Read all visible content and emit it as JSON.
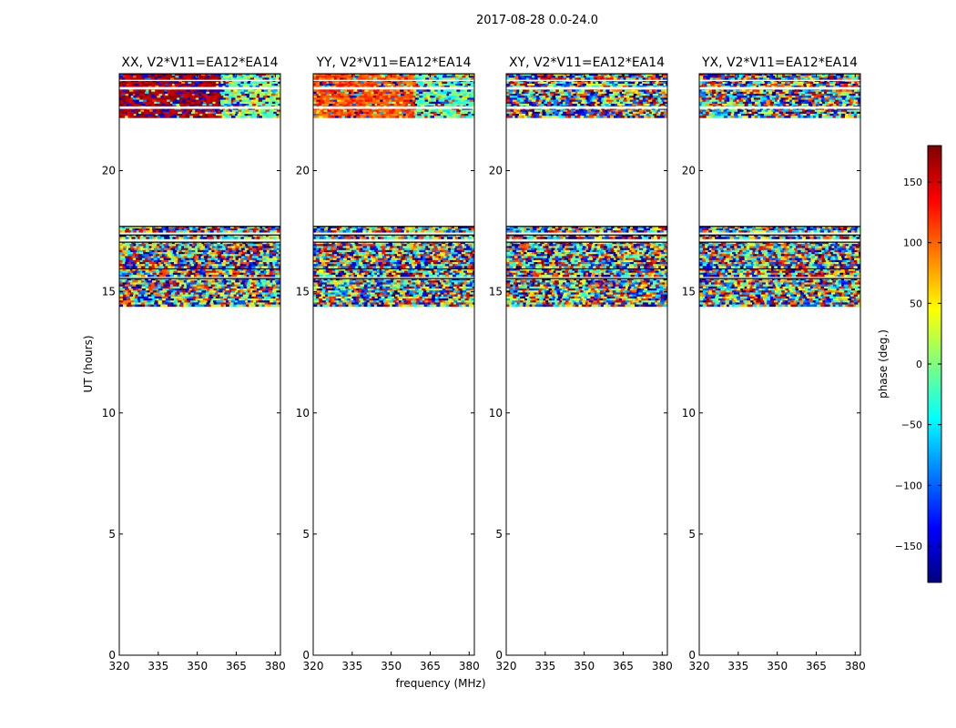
{
  "figure": {
    "suptitle": "2017-08-28 0.0-24.0"
  },
  "chart_data": {
    "type": "heatmap",
    "panels": [
      {
        "title": "XX, V2*V11=EA12*EA14",
        "base": "dark-red",
        "column_change": "light-blue"
      },
      {
        "title": "YY, V2*V11=EA12*EA14",
        "base": "red-orange",
        "column_change": "light-cyan"
      },
      {
        "title": "XY, V2*V11=EA12*EA14",
        "base": "noise",
        "column_change": "noise"
      },
      {
        "title": "YX, V2*V11=EA12*EA14",
        "base": "noise",
        "column_change": "noise"
      }
    ],
    "xlabel": "frequency (MHz)",
    "ylabel": "UT (hours)",
    "xlim": [
      320,
      382
    ],
    "ylim": [
      0,
      24
    ],
    "x_ticks": [
      320,
      335,
      350,
      365,
      380
    ],
    "y_ticks": [
      0,
      5,
      10,
      15,
      20
    ],
    "x_ticklabels": [
      "320",
      "335",
      "350",
      "365",
      "380"
    ],
    "y_ticklabels": [
      "0",
      "5",
      "10",
      "15",
      "20"
    ],
    "data_segments_ut": [
      [
        14.45,
        15.55
      ],
      [
        15.65,
        15.95
      ],
      [
        16.05,
        17.05
      ],
      [
        17.25,
        17.35
      ],
      [
        17.5,
        17.7
      ],
      [
        22.2,
        24.0
      ]
    ],
    "colorbar": {
      "label": "phase (deg.)",
      "range": [
        -180,
        180
      ],
      "ticks": [
        150,
        100,
        50,
        0,
        -50,
        -100,
        -150
      ],
      "ticklabels": [
        "150",
        "100",
        "50",
        "0",
        "−50",
        "−100",
        "−150"
      ],
      "colormap": [
        "#00007f",
        "#0000ff",
        "#007fff",
        "#00ffff",
        "#7fff7f",
        "#ffff00",
        "#ff7f00",
        "#ff0000",
        "#7f0000"
      ]
    }
  }
}
